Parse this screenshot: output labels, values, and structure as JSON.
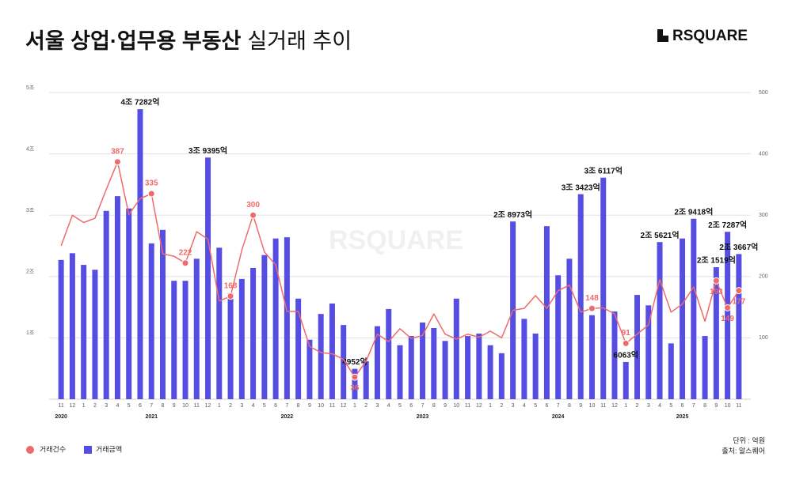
{
  "chart_data": {
    "type": "bar_line",
    "title": "서울 상업·업무용 부동산",
    "title_light": "실거래 추이",
    "brand": "RSQUARE",
    "unit_note": "단위 : 억원",
    "source": "출처: 알스퀘어",
    "categories": [
      "11",
      "12",
      "1",
      "2",
      "3",
      "4",
      "5",
      "6",
      "7",
      "8",
      "9",
      "10",
      "11",
      "12",
      "1",
      "2",
      "3",
      "4",
      "5",
      "6",
      "7",
      "8",
      "9",
      "10",
      "11",
      "12",
      "1",
      "2",
      "3",
      "4",
      "5",
      "6",
      "7",
      "8",
      "9",
      "10",
      "11",
      "12",
      "1",
      "2",
      "3",
      "4",
      "5",
      "6",
      "7",
      "8",
      "9",
      "10",
      "11",
      "12",
      "1",
      "2",
      "3",
      "4",
      "5",
      "6",
      "7",
      "8",
      "9",
      "10",
      "11"
    ],
    "x_groups": [
      {
        "label": "2020",
        "index": 0
      },
      {
        "label": "2021",
        "index": 8
      },
      {
        "label": "2022",
        "index": 20
      },
      {
        "label": "2023",
        "index": 32
      },
      {
        "label": "2024",
        "index": 44
      },
      {
        "label": "2025",
        "index": 55
      }
    ],
    "ylim": [
      0,
      5
    ],
    "yticks": [
      {
        "value": 1,
        "label": "1조"
      },
      {
        "value": 2,
        "label": "2조"
      },
      {
        "value": 3,
        "label": "3조"
      },
      {
        "value": 4,
        "label": "4조"
      },
      {
        "value": 5,
        "label": "5조"
      }
    ],
    "y2lim": [
      0,
      500
    ],
    "y2ticks": [
      100,
      200,
      300,
      400,
      500
    ],
    "grid": true,
    "series": [
      {
        "name": "거래금액",
        "color": "#564ee3",
        "type": "bar",
        "values": [
          2.27,
          2.38,
          2.19,
          2.11,
          3.07,
          3.31,
          3.11,
          4.7282,
          2.54,
          2.76,
          1.93,
          1.93,
          2.29,
          3.9395,
          2.47,
          1.73,
          1.96,
          2.14,
          2.35,
          2.62,
          2.64,
          1.64,
          0.97,
          1.39,
          1.56,
          1.21,
          0.4952,
          0.62,
          1.19,
          1.47,
          0.88,
          1.03,
          1.25,
          1.16,
          0.95,
          1.64,
          1.03,
          1.07,
          0.88,
          0.75,
          2.8973,
          1.31,
          1.07,
          2.82,
          2.02,
          2.29,
          3.3423,
          1.37,
          3.6117,
          1.43,
          0.6063,
          1.7,
          1.53,
          2.5621,
          0.91,
          2.62,
          2.9418,
          1.03,
          2.1519,
          2.7287,
          2.3667
        ],
        "value_labels": [
          null,
          null,
          null,
          null,
          null,
          null,
          null,
          "4조 7282억",
          null,
          null,
          null,
          null,
          null,
          "3조 9395억",
          null,
          null,
          null,
          null,
          null,
          null,
          null,
          null,
          null,
          null,
          null,
          null,
          "4952억",
          null,
          null,
          null,
          null,
          null,
          null,
          null,
          null,
          null,
          null,
          null,
          null,
          null,
          "2조 8973억",
          null,
          null,
          null,
          null,
          null,
          "3조 3423억",
          null,
          "3조 6117억",
          null,
          "6063억",
          null,
          null,
          "2조 5621억",
          null,
          null,
          "2조 9418억",
          null,
          "2조 1519억",
          "2조 7287억",
          "2조 3667억"
        ]
      },
      {
        "name": "거래건수",
        "color": "#ef6a6a",
        "type": "line",
        "axis": "y2",
        "values": [
          250,
          300,
          288,
          295,
          342,
          387,
          301,
          327,
          335,
          237,
          233,
          222,
          273,
          261,
          160,
          168,
          243,
          300,
          240,
          219,
          143,
          143,
          86,
          76,
          74,
          65,
          36,
          62,
          106,
          94,
          115,
          99,
          104,
          139,
          106,
          98,
          106,
          101,
          111,
          100,
          145,
          148,
          169,
          148,
          177,
          186,
          142,
          148,
          149,
          139,
          91,
          106,
          121,
          195,
          142,
          155,
          183,
          127,
          193,
          149,
          177
        ],
        "value_labels": [
          null,
          null,
          null,
          null,
          null,
          "387",
          null,
          null,
          "335",
          null,
          null,
          "222",
          null,
          null,
          null,
          "168",
          null,
          "300",
          null,
          null,
          null,
          null,
          null,
          null,
          null,
          null,
          "36",
          null,
          null,
          null,
          null,
          null,
          null,
          null,
          null,
          null,
          null,
          null,
          null,
          null,
          null,
          null,
          null,
          null,
          null,
          null,
          null,
          "148",
          null,
          null,
          "91",
          null,
          null,
          null,
          null,
          null,
          null,
          null,
          "193",
          "149",
          "177"
        ]
      }
    ]
  }
}
